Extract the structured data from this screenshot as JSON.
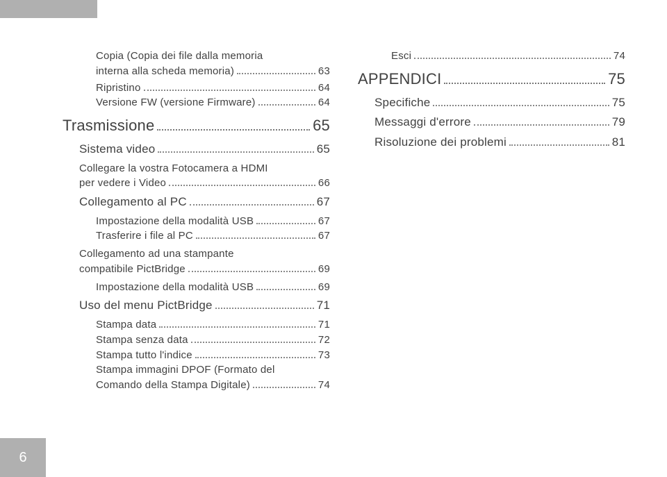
{
  "page_number": "6",
  "colors": {
    "tab": "#b0b0b0",
    "text": "#414141",
    "pagenum_bg": "#b0b0b0",
    "pagenum_fg": "#ffffff"
  },
  "left": [
    {
      "type": "multi",
      "level": 2,
      "lines": [
        "Copia (Copia dei file dalla memoria",
        "interna alla scheda memoria)"
      ],
      "page": "63"
    },
    {
      "type": "line",
      "level": 2,
      "label": "Ripristino",
      "page": "64"
    },
    {
      "type": "line",
      "level": 2,
      "label": "Versione FW (versione Firmware)",
      "page": "64"
    },
    {
      "type": "line",
      "level": 0,
      "label": "Trasmissione",
      "page": "65"
    },
    {
      "type": "line",
      "level": 1,
      "label": "Sistema video",
      "page": "65"
    },
    {
      "type": "multi",
      "level": 1,
      "lines": [
        "Collegare la vostra Fotocamera a HDMI",
        "per vedere i Video"
      ],
      "page": "66"
    },
    {
      "type": "line",
      "level": 1,
      "label": "Collegamento al PC",
      "page": "67"
    },
    {
      "type": "line",
      "level": 2,
      "label": "Impostazione della modalità USB",
      "page": "67"
    },
    {
      "type": "line",
      "level": 2,
      "label": "Trasferire i file al PC",
      "page": "67"
    },
    {
      "type": "multi",
      "level": 1,
      "lines": [
        "Collegamento ad una stampante",
        "compatibile PictBridge"
      ],
      "page": "69"
    },
    {
      "type": "line",
      "level": 2,
      "label": "Impostazione della modalità USB",
      "page": "69"
    },
    {
      "type": "line",
      "level": 1,
      "label": "Uso del menu PictBridge",
      "page": "71"
    },
    {
      "type": "line",
      "level": 2,
      "label": "Stampa data",
      "page": "71"
    },
    {
      "type": "line",
      "level": 2,
      "label": "Stampa senza data",
      "page": "72"
    },
    {
      "type": "line",
      "level": 2,
      "label": "Stampa tutto l'indice",
      "page": "73"
    },
    {
      "type": "multi",
      "level": 2,
      "lines": [
        "Stampa immagini DPOF (Formato del",
        "Comando della Stampa Digitale)"
      ],
      "page": "74"
    }
  ],
  "right": [
    {
      "type": "line",
      "level": 2,
      "label": "Esci",
      "page": "74"
    },
    {
      "type": "line",
      "level": 0,
      "label": "APPENDICI",
      "page": "75"
    },
    {
      "type": "line",
      "level": 1,
      "label": "Specifiche",
      "page": "75"
    },
    {
      "type": "line",
      "level": 1,
      "label": "Messaggi d'errore",
      "page": "79"
    },
    {
      "type": "line",
      "level": 1,
      "label": "Risoluzione dei problemi",
      "page": "81"
    }
  ]
}
